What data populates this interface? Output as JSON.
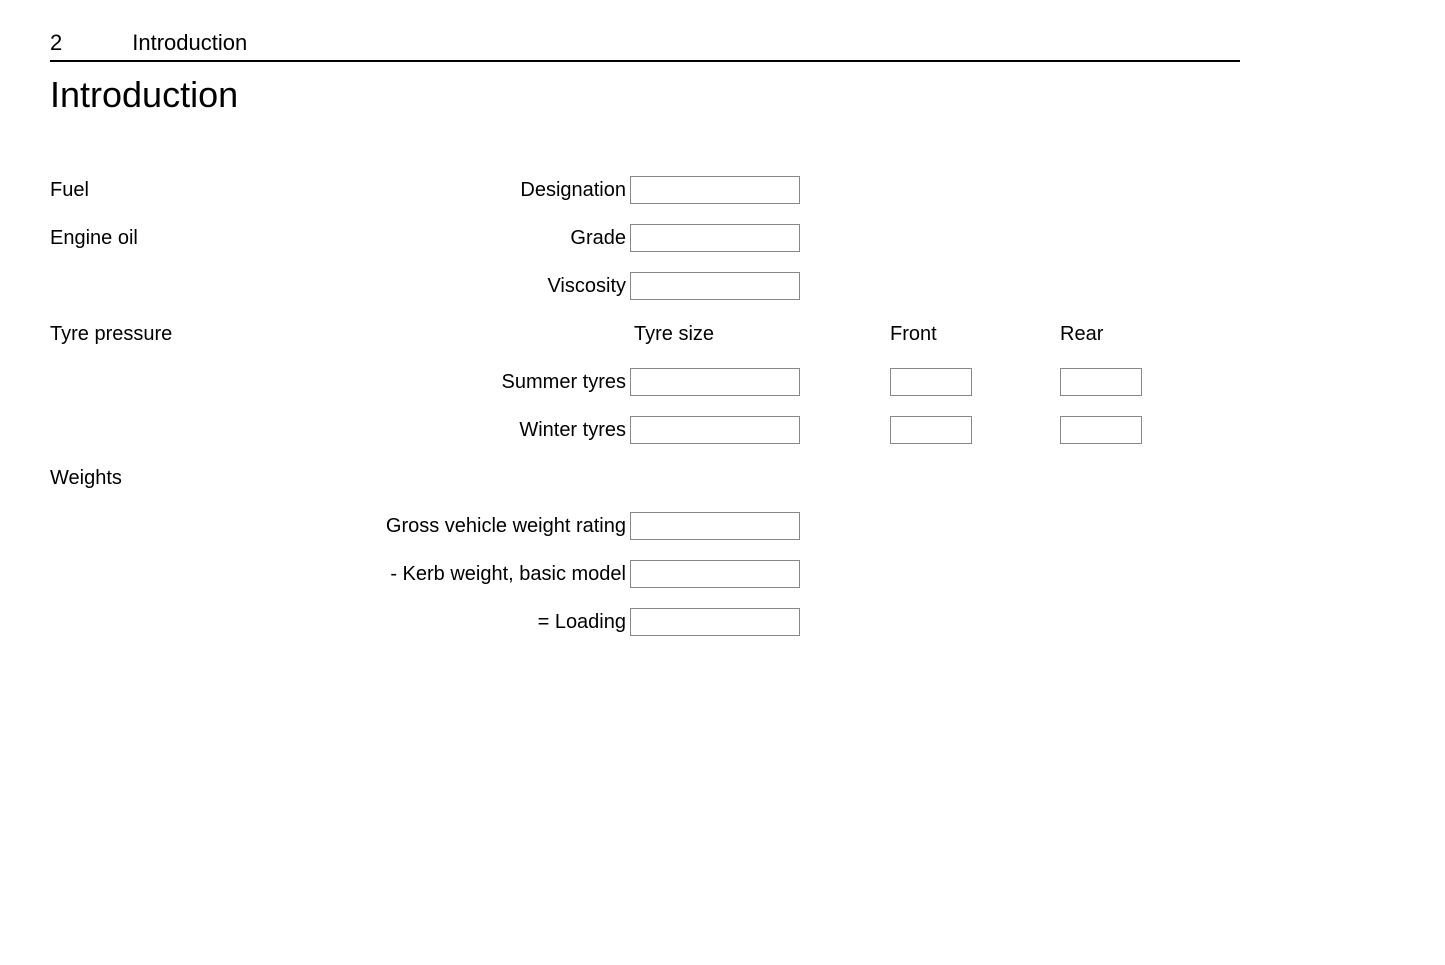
{
  "header": {
    "page_number": "2",
    "section_name": "Introduction"
  },
  "title": "Introduction",
  "sections": {
    "fuel": {
      "category": "Fuel",
      "designation_label": "Designation",
      "designation_value": ""
    },
    "engine_oil": {
      "category": "Engine oil",
      "grade_label": "Grade",
      "grade_value": "",
      "viscosity_label": "Viscosity",
      "viscosity_value": ""
    },
    "tyre_pressure": {
      "category": "Tyre pressure",
      "tyre_size_header": "Tyre size",
      "front_header": "Front",
      "rear_header": "Rear",
      "summer_label": "Summer tyres",
      "summer_size_value": "",
      "summer_front_value": "",
      "summer_rear_value": "",
      "winter_label": "Winter tyres",
      "winter_size_value": "",
      "winter_front_value": "",
      "winter_rear_value": ""
    },
    "weights": {
      "category": "Weights",
      "gross_label": "Gross vehicle weight rating",
      "gross_value": "",
      "kerb_label": "- Kerb weight, basic model",
      "kerb_value": "",
      "loading_label": "= Loading",
      "loading_value": ""
    }
  },
  "style": {
    "text_color": "#000000",
    "border_color": "#888888",
    "background": "#ffffff",
    "header_rule_color": "#000000",
    "body_fontsize": 20,
    "title_fontsize": 36,
    "header_fontsize": 22,
    "input_width_wide": 170,
    "input_width_small": 82,
    "input_height": 28
  }
}
